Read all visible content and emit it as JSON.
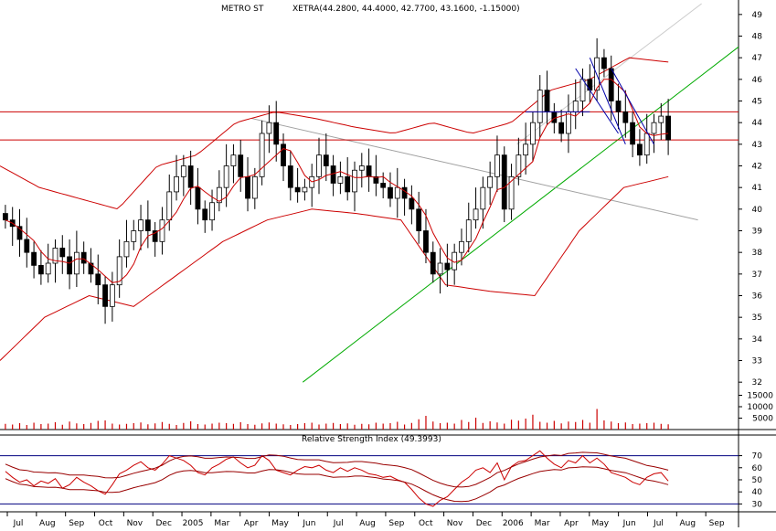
{
  "header": {
    "symbol": "METRO ST",
    "quote": "XETRA(44.2800, 44.4000, 42.7700, 43.1600, -1.15000)"
  },
  "rsi_panel": {
    "title": "Relative Strength Index (49.3993)"
  },
  "colors": {
    "candle_up": "#ffffff",
    "candle_down": "#000000",
    "bollinger": "#cc0000",
    "support_line": "#00aa00",
    "trend_gray": "#a0a0a0",
    "channel_blue": "#0000aa",
    "volume": "#cc0000",
    "rsi": "#cc0000",
    "rsi_levels": "#000080"
  },
  "chart_data": [
    {
      "type": "candlestick",
      "panel": "price",
      "title": "METRO ST",
      "ylim": [
        31.5,
        49.5
      ],
      "y_ticks": [
        32,
        33,
        34,
        35,
        36,
        37,
        38,
        39,
        40,
        41,
        42,
        43,
        44,
        45,
        46,
        47,
        48,
        49
      ],
      "x_tick_labels": [
        "Jul",
        "Aug",
        "Sep",
        "Oct",
        "Nov",
        "Dec",
        "2005",
        "Mar",
        "Apr",
        "May",
        "Jun",
        "Jul",
        "Aug",
        "Sep",
        "Oct",
        "Nov",
        "Dec",
        "2006",
        "Mar",
        "Apr",
        "May",
        "Jun",
        "Jul",
        "Aug",
        "Sep"
      ],
      "horizontal_lines": [
        44.5,
        43.2
      ],
      "support_line": {
        "from": [
          0.41,
          32
        ],
        "to": [
          1.0,
          47.5
        ]
      },
      "resistance_line": {
        "from": [
          0.34,
          44.2
        ],
        "to": [
          0.945,
          39.5
        ]
      },
      "weekly_closes": [
        39.5,
        39.2,
        38.6,
        38.0,
        37.4,
        37.0,
        37.5,
        38.2,
        37.8,
        37.0,
        38.0,
        37.5,
        37.0,
        36.5,
        35.5,
        36.5,
        37.8,
        38.5,
        39.0,
        39.5,
        39.0,
        38.5,
        39.5,
        40.8,
        41.5,
        42.0,
        41.0,
        40.0,
        39.5,
        40.3,
        41.0,
        42.0,
        42.5,
        41.5,
        40.5,
        41.5,
        43.5,
        44.0,
        43.0,
        42.0,
        41.0,
        40.8,
        41.0,
        41.5,
        42.5,
        42.0,
        41.2,
        41.5,
        40.8,
        41.8,
        42.0,
        41.5,
        41.2,
        41.0,
        40.5,
        41.0,
        40.5,
        40.0,
        39.0,
        38.0,
        37.0,
        37.5,
        37.2,
        38.0,
        38.5,
        39.5,
        40.0,
        41.0,
        41.5,
        42.5,
        40.0,
        41.5,
        42.5,
        43.0,
        44.0,
        45.5,
        44.5,
        44.0,
        43.5,
        44.5,
        45.0,
        46.0,
        45.5,
        47.0,
        46.5,
        45.0,
        44.5,
        44.0,
        43.0,
        42.5,
        43.5,
        44.0,
        44.3,
        43.2
      ],
      "bollinger_upper_anchors": [
        42.0,
        41.0,
        40.5,
        40.0,
        42.0,
        42.5,
        44.0,
        44.5,
        44.2,
        43.8,
        43.5,
        44.0,
        43.5,
        44.0,
        45.5,
        46.0,
        47.0,
        46.8
      ],
      "bollinger_lower_anchors": [
        33.0,
        35.0,
        36.0,
        35.5,
        37.0,
        38.5,
        39.5,
        40.0,
        39.8,
        39.5,
        36.5,
        36.2,
        36.0,
        39.0,
        41.0,
        41.5
      ],
      "series": [
        {
          "name": "XETRA"
        }
      ]
    },
    {
      "type": "bar",
      "panel": "volume",
      "y_ticks": [
        5000,
        10000,
        15000
      ],
      "ylim": [
        0,
        16000
      ],
      "values": [
        2500,
        2200,
        2800,
        2000,
        3000,
        2400,
        2600,
        3200,
        2100,
        3500,
        2700,
        2400,
        2900,
        3800,
        4000,
        2600,
        2200,
        2500,
        2800,
        3100,
        2300,
        2700,
        3300,
        2500,
        2000,
        2900,
        3600,
        2400,
        2200,
        2600,
        3000,
        2800,
        2500,
        3200,
        2400,
        2100,
        2700,
        3100,
        2600,
        2300,
        2000,
        2400,
        2800,
        3000,
        2200,
        2600,
        2900,
        2400,
        2700,
        2100,
        2500,
        2300,
        3000,
        2600,
        2800,
        3400,
        2200,
        2900,
        4500,
        6000,
        3500,
        2800,
        3000,
        2600,
        4200,
        3300,
        5200,
        2900,
        3600,
        3100,
        2600,
        4300,
        3900,
        4800,
        6500,
        3400,
        3000,
        3800,
        2700,
        3500,
        3300,
        4200,
        3000,
        9000,
        4000,
        3500,
        2800,
        3100,
        2400,
        2600,
        2800,
        3000,
        2500,
        2300
      ]
    },
    {
      "type": "line",
      "panel": "rsi",
      "title": "Relative Strength Index (49.3993)",
      "ylim": [
        25,
        78
      ],
      "y_ticks": [
        30,
        40,
        50,
        60,
        70
      ],
      "reference_lines": [
        70,
        30
      ],
      "values": [
        57,
        52,
        48,
        50,
        45,
        49,
        47,
        51,
        43,
        46,
        52,
        48,
        45,
        41,
        38,
        46,
        55,
        58,
        62,
        65,
        60,
        58,
        63,
        70,
        68,
        66,
        62,
        56,
        54,
        60,
        63,
        67,
        69,
        64,
        60,
        62,
        70,
        66,
        58,
        56,
        54,
        58,
        61,
        60,
        62,
        58,
        56,
        60,
        57,
        60,
        58,
        55,
        54,
        52,
        53,
        50,
        48,
        42,
        35,
        30,
        28,
        33,
        36,
        42,
        48,
        52,
        58,
        60,
        56,
        64,
        50,
        61,
        65,
        66,
        70,
        74,
        68,
        63,
        60,
        66,
        64,
        70,
        64,
        68,
        63,
        56,
        54,
        52,
        48,
        46,
        52,
        55,
        56,
        49
      ]
    }
  ]
}
